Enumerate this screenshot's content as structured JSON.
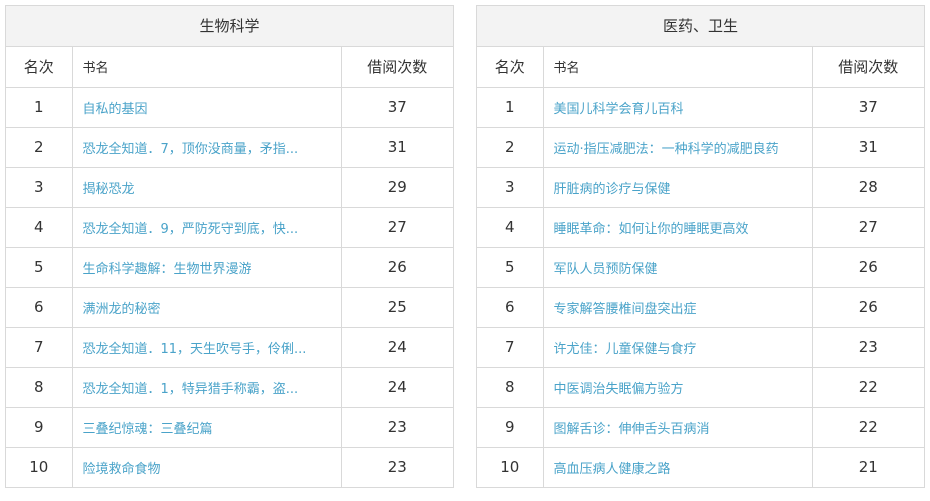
{
  "panels": [
    {
      "title": "生物科学",
      "headers": {
        "rank": "名次",
        "name": "书名",
        "count": "借阅次数"
      },
      "rows": [
        {
          "rank": "1",
          "name": "自私的基因",
          "count": "37"
        },
        {
          "rank": "2",
          "name": "恐龙全知道．7，顶你没商量，矛指...",
          "count": "31"
        },
        {
          "rank": "3",
          "name": "揭秘恐龙",
          "count": "29"
        },
        {
          "rank": "4",
          "name": "恐龙全知道．9，严防死守到底，快...",
          "count": "27"
        },
        {
          "rank": "5",
          "name": "生命科学趣解：生物世界漫游",
          "count": "26"
        },
        {
          "rank": "6",
          "name": "满洲龙的秘密",
          "count": "25"
        },
        {
          "rank": "7",
          "name": "恐龙全知道．11，天生吹号手，伶俐...",
          "count": "24"
        },
        {
          "rank": "8",
          "name": "恐龙全知道．1，特异猎手称霸，盗...",
          "count": "24"
        },
        {
          "rank": "9",
          "name": "三叠纪惊魂：三叠纪篇",
          "count": "23"
        },
        {
          "rank": "10",
          "name": "险境救命食物",
          "count": "23"
        }
      ]
    },
    {
      "title": "医药、卫生",
      "headers": {
        "rank": "名次",
        "name": "书名",
        "count": "借阅次数"
      },
      "rows": [
        {
          "rank": "1",
          "name": "美国儿科学会育儿百科",
          "count": "37"
        },
        {
          "rank": "2",
          "name": "运动·指压减肥法：一种科学的减肥良药",
          "count": "31"
        },
        {
          "rank": "3",
          "name": "肝脏病的诊疗与保健",
          "count": "28"
        },
        {
          "rank": "4",
          "name": "睡眠革命：如何让你的睡眠更高效",
          "count": "27"
        },
        {
          "rank": "5",
          "name": "军队人员预防保健",
          "count": "26"
        },
        {
          "rank": "6",
          "name": "专家解答腰椎间盘突出症",
          "count": "26"
        },
        {
          "rank": "7",
          "name": "许尤佳：儿童保健与食疗",
          "count": "23"
        },
        {
          "rank": "8",
          "name": "中医调治失眠偏方验方",
          "count": "22"
        },
        {
          "rank": "9",
          "name": "图解舌诊：伸伸舌头百病消",
          "count": "22"
        },
        {
          "rank": "10",
          "name": "高血压病人健康之路",
          "count": "21"
        }
      ]
    }
  ],
  "colors": {
    "link": "#4aa3c9",
    "border": "#d9d9d9",
    "title_bg": "#f3f3f3",
    "text": "#333333"
  }
}
